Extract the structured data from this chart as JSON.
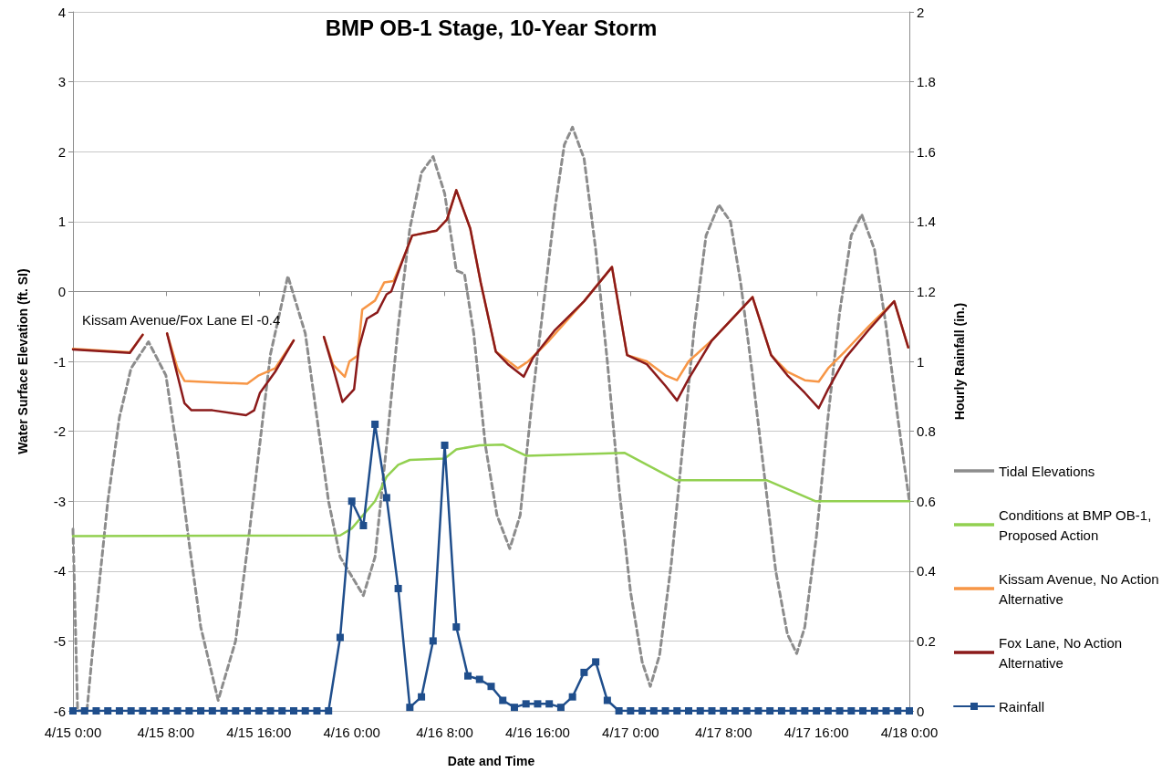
{
  "chart_data": {
    "type": "line",
    "title": "BMP OB-1 Stage, 10-Year Storm",
    "xlabel": "Date and Time",
    "ylabel": "Water Surface Elevation (ft. SI)",
    "y2label": "Hourly Rainfall (in.)",
    "annotations": [
      "Kissam Avenue/Fox Lane El -0.4"
    ],
    "xlim": [
      "--04-15T00:00",
      "--04-18T00:00"
    ],
    "xticks": [
      {
        "value": "--04-15T00:00",
        "label": "4/15 0:00"
      },
      {
        "value": "--04-15T08:00",
        "label": "4/15 8:00"
      },
      {
        "value": "--04-15T16:00",
        "label": "4/15 16:00"
      },
      {
        "value": "--04-16T00:00",
        "label": "4/16 0:00"
      },
      {
        "value": "--04-16T08:00",
        "label": "4/16 8:00"
      },
      {
        "value": "--04-16T16:00",
        "label": "4/16 16:00"
      },
      {
        "value": "--04-17T00:00",
        "label": "4/17 0:00"
      },
      {
        "value": "--04-17T08:00",
        "label": "4/17 8:00"
      },
      {
        "value": "--04-17T16:00",
        "label": "4/17 16:00"
      },
      {
        "value": "--04-18T00:00",
        "label": "4/18 0:00"
      }
    ],
    "x": [
      "--04-15T00:00",
      "--04-15T01:00",
      "--04-15T02:00",
      "--04-15T03:00",
      "--04-15T04:00",
      "--04-15T05:00",
      "--04-15T06:00",
      "--04-15T07:00",
      "--04-15T08:00",
      "--04-15T09:00",
      "--04-15T10:00",
      "--04-15T11:00",
      "--04-15T12:00",
      "--04-15T13:00",
      "--04-15T14:00",
      "--04-15T15:00",
      "--04-15T16:00",
      "--04-15T17:00",
      "--04-15T18:00",
      "--04-15T19:00",
      "--04-15T20:00",
      "--04-15T21:00",
      "--04-15T22:00",
      "--04-15T23:00",
      "--04-16T00:00",
      "--04-16T01:00",
      "--04-16T02:00",
      "--04-16T03:00",
      "--04-16T04:00",
      "--04-16T05:00",
      "--04-16T06:00",
      "--04-16T07:00",
      "--04-16T08:00",
      "--04-16T09:00",
      "--04-16T10:00",
      "--04-16T11:00",
      "--04-16T12:00",
      "--04-16T13:00",
      "--04-16T14:00",
      "--04-16T15:00",
      "--04-16T16:00",
      "--04-16T17:00",
      "--04-16T18:00",
      "--04-16T19:00",
      "--04-16T20:00",
      "--04-16T21:00",
      "--04-16T22:00",
      "--04-16T23:00",
      "--04-17T00:00",
      "--04-17T01:00",
      "--04-17T02:00",
      "--04-17T03:00",
      "--04-17T04:00",
      "--04-17T05:00",
      "--04-17T06:00",
      "--04-17T07:00",
      "--04-17T08:00",
      "--04-17T09:00",
      "--04-17T10:00",
      "--04-17T11:00",
      "--04-17T12:00",
      "--04-17T13:00",
      "--04-17T14:00",
      "--04-17T15:00",
      "--04-17T16:00",
      "--04-17T17:00",
      "--04-17T18:00",
      "--04-17T19:00",
      "--04-17T20:00",
      "--04-17T21:00",
      "--04-17T22:00",
      "--04-17T23:00",
      "--04-18T00:00"
    ],
    "ylim": [
      -6,
      4
    ],
    "yticks": [
      -6,
      -5,
      -4,
      -3,
      -2,
      -1,
      0,
      1,
      2,
      3,
      4
    ],
    "y2lim": [
      0,
      2
    ],
    "y2ticks": [
      0,
      0.2,
      0.4,
      0.6,
      0.8,
      1,
      1.2,
      1.4,
      1.6,
      1.8,
      2
    ],
    "grid": "y",
    "legend": "right",
    "series": [
      {
        "name": "Tidal Elevations",
        "color": "#8c8c8c",
        "line_style": "dashed",
        "marker": "none",
        "x": [
          "--04-15T00:00",
          "--04-15T00:24",
          "--04-15T01:12",
          "--04-15T02:00",
          "--04-15T03:00",
          "--04-15T04:00",
          "--04-15T05:00",
          "--04-15T06:30",
          "--04-15T08:00",
          "--04-15T09:00",
          "--04-15T10:00",
          "--04-15T11:00",
          "--04-15T12:30",
          "--04-15T14:00",
          "--04-15T15:00",
          "--04-15T16:00",
          "--04-15T17:00",
          "--04-15T18:30",
          "--04-15T20:00",
          "--04-15T21:00",
          "--04-15T22:00",
          "--04-15T23:00",
          "--04-16T01:00",
          "--04-16T02:00",
          "--04-16T03:00",
          "--04-16T04:00",
          "--04-16T05:00",
          "--04-16T06:00",
          "--04-16T07:00",
          "--04-16T08:00",
          "--04-16T09:00",
          "--04-16T09:42",
          "--04-16T10:30",
          "--04-16T11:30",
          "--04-16T12:30",
          "--04-16T13:36",
          "--04-16T14:30",
          "--04-16T15:30",
          "--04-16T16:30",
          "--04-16T17:30",
          "--04-16T18:18",
          "--04-16T19:00",
          "--04-16T20:00",
          "--04-16T21:00",
          "--04-16T22:00",
          "--04-16T23:00",
          "--04-17T00:00",
          "--04-17T01:00",
          "--04-17T01:42",
          "--04-17T02:30",
          "--04-17T03:30",
          "--04-17T04:30",
          "--04-17T05:30",
          "--04-17T06:30",
          "--04-17T07:36",
          "--04-17T08:36",
          "--04-17T09:30",
          "--04-17T10:30",
          "--04-17T11:30",
          "--04-17T12:30",
          "--04-17T13:30",
          "--04-17T14:18",
          "--04-17T15:00",
          "--04-17T16:00",
          "--04-17T17:00",
          "--04-17T18:00",
          "--04-17T19:00",
          "--04-17T19:54",
          "--04-17T21:00",
          "--04-17T22:00",
          "--04-17T23:00",
          "--04-18T00:00"
        ],
        "values": [
          -3.4,
          -6,
          -6,
          -4.6,
          -3.0,
          -1.8,
          -1.1,
          -0.72,
          -1.2,
          -2.3,
          -3.6,
          -4.8,
          -5.85,
          -5.0,
          -3.7,
          -2.3,
          -0.9,
          0.22,
          -0.6,
          -1.8,
          -3.0,
          -3.8,
          -4.35,
          -3.8,
          -2.2,
          -0.5,
          0.9,
          1.7,
          1.93,
          1.4,
          0.3,
          0.25,
          -0.6,
          -2.2,
          -3.2,
          -3.68,
          -3.2,
          -1.6,
          -0.2,
          1.2,
          2.1,
          2.35,
          1.9,
          0.6,
          -1.0,
          -2.8,
          -4.3,
          -5.3,
          -5.65,
          -5.2,
          -3.9,
          -2.2,
          -0.5,
          0.8,
          1.24,
          1.0,
          0.1,
          -1.2,
          -2.6,
          -4.0,
          -4.9,
          -5.18,
          -4.8,
          -3.5,
          -1.8,
          -0.3,
          0.8,
          1.1,
          0.6,
          -0.5,
          -1.8,
          -3.0
        ]
      },
      {
        "name": "Conditions at BMP OB-1, Proposed Action",
        "color": "#92d050",
        "line_style": "solid",
        "marker": "none",
        "x": [
          "--04-15T00:00",
          "--04-15T23:00",
          "--04-16T00:00",
          "--04-16T02:00",
          "--04-16T03:00",
          "--04-16T04:00",
          "--04-16T05:00",
          "--04-16T08:00",
          "--04-16T09:00",
          "--04-16T11:00",
          "--04-16T13:00",
          "--04-16T15:00",
          "--04-16T23:30",
          "--04-17T03:54",
          "--04-17T11:42",
          "--04-17T15:54",
          "--04-18T00:00"
        ],
        "values": [
          -3.5,
          -3.49,
          -3.39,
          -3.0,
          -2.65,
          -2.48,
          -2.41,
          -2.39,
          -2.26,
          -2.2,
          -2.19,
          -2.35,
          -2.31,
          -2.7,
          -2.7,
          -3.0,
          -3.0
        ]
      },
      {
        "name": "Kissam Avenue, No Action Alternative",
        "color": "#f79646",
        "line_style": "solid",
        "marker": "none",
        "x": [
          "--04-15T00:00",
          "--04-15T04:54",
          "--04-15T06:00",
          "--04-15T07:00",
          "--04-15T08:06",
          "--04-15T09:00",
          "--04-15T09:36",
          "--04-15T12:00",
          "--04-15T15:00",
          "--04-15T16:00",
          "--04-15T17:24",
          "--04-15T19:00",
          "--04-15T20:00",
          "--04-15T21:36",
          "--04-15T22:24",
          "--04-15T23:24",
          "--04-15T23:48",
          "--04-16T00:30",
          "--04-16T00:54",
          "--04-16T02:00",
          "--04-16T02:48",
          "--04-16T03:36",
          "--04-16T04:30",
          "--04-16T05:12",
          "--04-16T07:18",
          "--04-16T08:12",
          "--04-16T09:00",
          "--04-16T10:12",
          "--04-16T11:06",
          "--04-16T12:24",
          "--04-16T13:30",
          "--04-16T14:18",
          "--04-16T15:12",
          "--04-16T17:00",
          "--04-16T20:00",
          "--04-16T22:24",
          "--04-16T23:42",
          "--04-17T01:24",
          "--04-17T03:00",
          "--04-17T04:00",
          "--04-17T05:00",
          "--04-17T07:00",
          "--04-17T10:30",
          "--04-17T12:06",
          "--04-17T13:30",
          "--04-17T15:00",
          "--04-17T16:12",
          "--04-17T17:00",
          "--04-17T18:30",
          "--04-17T20:30",
          "--04-17T22:42",
          "--04-17T23:54"
        ],
        "values": [
          -0.82,
          -0.87,
          -0.62,
          null,
          -0.6,
          -1.1,
          -1.28,
          -1.3,
          -1.32,
          -1.2,
          -1.1,
          -0.7,
          null,
          -0.65,
          -1.05,
          -1.22,
          -1.0,
          -0.92,
          -0.26,
          -0.13,
          0.13,
          0.15,
          0.5,
          0.8,
          0.87,
          1.03,
          1.45,
          0.9,
          0.13,
          -0.86,
          -1.0,
          -1.1,
          -1.0,
          -0.7,
          -0.14,
          0.35,
          -0.91,
          -1.0,
          -1.2,
          -1.27,
          -1.0,
          -0.7,
          -0.08,
          -0.91,
          -1.15,
          -1.27,
          -1.29,
          -1.1,
          -0.85,
          -0.5,
          -0.14,
          -0.8
        ]
      },
      {
        "name": "Fox Lane, No Action Alternative",
        "color": "#8b1a1a",
        "line_style": "solid",
        "marker": "none",
        "x": [
          "--04-15T00:00",
          "--04-15T04:54",
          "--04-15T06:00",
          "--04-15T07:00",
          "--04-15T08:06",
          "--04-15T09:36",
          "--04-15T10:12",
          "--04-15T12:00",
          "--04-15T14:54",
          "--04-15T15:36",
          "--04-15T16:06",
          "--04-15T17:24",
          "--04-15T19:00",
          "--04-15T20:00",
          "--04-15T21:36",
          "--04-15T22:24",
          "--04-15T23:12",
          "--04-16T00:12",
          "--04-16T00:36",
          "--04-16T01:18",
          "--04-16T02:12",
          "--04-16T03:00",
          "--04-16T03:24",
          "--04-16T04:30",
          "--04-16T05:12",
          "--04-16T07:18",
          "--04-16T08:12",
          "--04-16T09:00",
          "--04-16T10:12",
          "--04-16T11:06",
          "--04-16T12:24",
          "--04-16T13:30",
          "--04-16T14:48",
          "--04-16T15:36",
          "--04-16T17:30",
          "--04-16T20:00",
          "--04-16T22:24",
          "--04-16T23:42",
          "--04-17T01:24",
          "--04-17T03:00",
          "--04-17T04:00",
          "--04-17T05:00",
          "--04-17T07:00",
          "--04-17T10:30",
          "--04-17T12:06",
          "--04-17T13:30",
          "--04-17T15:00",
          "--04-17T16:12",
          "--04-17T17:00",
          "--04-17T18:30",
          "--04-17T20:30",
          "--04-17T22:42",
          "--04-17T23:54"
        ],
        "values": [
          -0.83,
          -0.88,
          -0.62,
          null,
          -0.6,
          -1.6,
          -1.7,
          -1.7,
          -1.77,
          -1.7,
          -1.45,
          -1.15,
          -0.7,
          null,
          -0.65,
          -1.1,
          -1.58,
          -1.4,
          -0.82,
          -0.39,
          -0.3,
          -0.04,
          0.0,
          0.5,
          0.8,
          0.87,
          1.03,
          1.45,
          0.9,
          0.13,
          -0.86,
          -1.05,
          -1.22,
          -0.95,
          -0.55,
          -0.14,
          0.35,
          -0.91,
          -1.04,
          -1.35,
          -1.56,
          -1.25,
          -0.7,
          -0.08,
          -0.91,
          -1.2,
          -1.45,
          -1.67,
          -1.4,
          -0.95,
          -0.55,
          -0.14,
          -0.8
        ]
      },
      {
        "name": "Rainfall",
        "color": "#1f4e8c",
        "line_style": "solid",
        "marker": "square",
        "axis": "y2",
        "values": [
          0,
          0,
          0,
          0,
          0,
          0,
          0,
          0,
          0,
          0,
          0,
          0,
          0,
          0,
          0,
          0,
          0,
          0,
          0,
          0,
          0,
          0,
          0,
          0.21,
          0.6,
          0.53,
          0.82,
          0.61,
          0.35,
          0.01,
          0.04,
          0.2,
          0.76,
          0.24,
          0.1,
          0.09,
          0.07,
          0.03,
          0.01,
          0.02,
          0.02,
          0.02,
          0.01,
          0.04,
          0.11,
          0.14,
          0.03,
          0,
          0,
          0,
          0,
          0,
          0,
          0,
          0,
          0,
          0,
          0,
          0,
          0,
          0,
          0,
          0,
          0,
          0,
          0,
          0,
          0,
          0,
          0,
          0,
          0,
          0
        ]
      }
    ]
  }
}
